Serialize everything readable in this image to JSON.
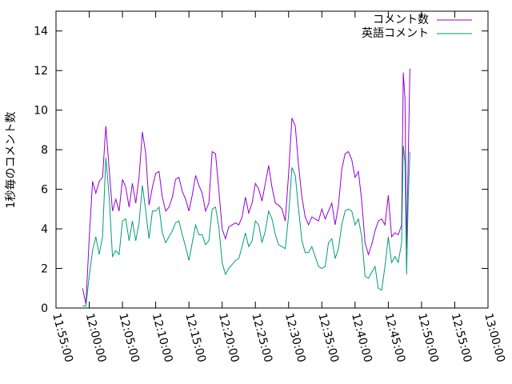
{
  "chart_data": {
    "type": "line",
    "title": "",
    "xlabel": "",
    "ylabel": "1秒毎のコメント数",
    "ylim": [
      0,
      15
    ],
    "xlim": [
      "11:55:00",
      "13:00:00"
    ],
    "yticks": [
      0,
      2,
      4,
      6,
      8,
      10,
      12,
      14
    ],
    "xticks": [
      "11:55:00",
      "12:00:00",
      "12:05:00",
      "12:10:00",
      "12:15:00",
      "12:20:00",
      "12:25:00",
      "12:30:00",
      "12:35:00",
      "12:40:00",
      "12:45:00",
      "12:50:00",
      "12:55:00",
      "13:00:00"
    ],
    "grid": false,
    "legend_position": "top-right",
    "series": [
      {
        "name": "コメント数",
        "color": "#9400d3",
        "points": [
          [
            "11:59:00",
            1.0
          ],
          [
            "11:59:30",
            0.2
          ],
          [
            "12:00:00",
            3.5
          ],
          [
            "12:00:30",
            6.4
          ],
          [
            "12:01:00",
            5.8
          ],
          [
            "12:01:30",
            6.4
          ],
          [
            "12:02:00",
            6.6
          ],
          [
            "12:02:30",
            9.2
          ],
          [
            "12:03:00",
            7.0
          ],
          [
            "12:03:30",
            4.9
          ],
          [
            "12:04:00",
            5.5
          ],
          [
            "12:04:30",
            4.9
          ],
          [
            "12:05:00",
            6.5
          ],
          [
            "12:05:30",
            6.1
          ],
          [
            "12:06:00",
            5.1
          ],
          [
            "12:06:30",
            6.3
          ],
          [
            "12:07:00",
            5.3
          ],
          [
            "12:07:30",
            6.6
          ],
          [
            "12:08:00",
            8.9
          ],
          [
            "12:08:30",
            7.8
          ],
          [
            "12:09:00",
            5.2
          ],
          [
            "12:09:30",
            6.1
          ],
          [
            "12:10:00",
            6.8
          ],
          [
            "12:10:30",
            6.9
          ],
          [
            "12:11:00",
            5.6
          ],
          [
            "12:11:30",
            4.9
          ],
          [
            "12:12:00",
            5.1
          ],
          [
            "12:12:30",
            5.6
          ],
          [
            "12:13:00",
            6.5
          ],
          [
            "12:13:30",
            6.6
          ],
          [
            "12:14:00",
            5.9
          ],
          [
            "12:14:30",
            5.5
          ],
          [
            "12:15:00",
            4.9
          ],
          [
            "12:15:30",
            5.7
          ],
          [
            "12:16:00",
            6.7
          ],
          [
            "12:16:30",
            6.2
          ],
          [
            "12:17:00",
            5.8
          ],
          [
            "12:17:30",
            4.9
          ],
          [
            "12:18:00",
            5.3
          ],
          [
            "12:18:30",
            7.9
          ],
          [
            "12:19:00",
            7.8
          ],
          [
            "12:19:30",
            6.0
          ],
          [
            "12:20:00",
            4.0
          ],
          [
            "12:20:30",
            3.5
          ],
          [
            "12:21:00",
            4.1
          ],
          [
            "12:21:30",
            4.2
          ],
          [
            "12:22:00",
            4.3
          ],
          [
            "12:22:30",
            4.2
          ],
          [
            "12:23:00",
            4.6
          ],
          [
            "12:23:30",
            5.6
          ],
          [
            "12:24:00",
            4.8
          ],
          [
            "12:24:30",
            5.3
          ],
          [
            "12:25:00",
            6.3
          ],
          [
            "12:25:30",
            6.0
          ],
          [
            "12:26:00",
            5.4
          ],
          [
            "12:26:30",
            6.3
          ],
          [
            "12:27:00",
            7.2
          ],
          [
            "12:27:30",
            6.1
          ],
          [
            "12:28:00",
            5.3
          ],
          [
            "12:28:30",
            5.2
          ],
          [
            "12:29:00",
            5.0
          ],
          [
            "12:29:30",
            4.4
          ],
          [
            "12:30:00",
            6.8
          ],
          [
            "12:30:30",
            9.6
          ],
          [
            "12:31:00",
            9.2
          ],
          [
            "12:31:30",
            7.2
          ],
          [
            "12:32:00",
            5.6
          ],
          [
            "12:32:30",
            4.6
          ],
          [
            "12:33:00",
            4.2
          ],
          [
            "12:33:30",
            4.6
          ],
          [
            "12:34:00",
            4.5
          ],
          [
            "12:34:30",
            4.4
          ],
          [
            "12:35:00",
            5.0
          ],
          [
            "12:35:30",
            4.5
          ],
          [
            "12:36:00",
            4.9
          ],
          [
            "12:36:30",
            5.3
          ],
          [
            "12:37:00",
            4.2
          ],
          [
            "12:37:30",
            5.2
          ],
          [
            "12:38:00",
            7.0
          ],
          [
            "12:38:30",
            7.8
          ],
          [
            "12:39:00",
            7.9
          ],
          [
            "12:39:30",
            7.5
          ],
          [
            "12:40:00",
            6.6
          ],
          [
            "12:40:30",
            6.9
          ],
          [
            "12:41:00",
            5.4
          ],
          [
            "12:41:30",
            3.3
          ],
          [
            "12:42:00",
            2.7
          ],
          [
            "12:42:30",
            3.2
          ],
          [
            "12:43:00",
            3.9
          ],
          [
            "12:43:30",
            4.4
          ],
          [
            "12:44:00",
            4.5
          ],
          [
            "12:44:30",
            4.2
          ],
          [
            "12:45:00",
            5.7
          ],
          [
            "12:45:30",
            3.6
          ],
          [
            "12:46:00",
            3.8
          ],
          [
            "12:46:30",
            3.7
          ],
          [
            "12:47:00",
            4.2
          ],
          [
            "12:47:15",
            11.9
          ],
          [
            "12:47:30",
            10.6
          ],
          [
            "12:47:45",
            3.0
          ],
          [
            "12:48:00",
            7.5
          ],
          [
            "12:48:15",
            12.1
          ]
        ]
      },
      {
        "name": "英語コメント",
        "color": "#009e73",
        "points": [
          [
            "11:59:00",
            0.1
          ],
          [
            "11:59:30",
            0.1
          ],
          [
            "12:00:00",
            1.6
          ],
          [
            "12:00:30",
            2.9
          ],
          [
            "12:01:00",
            3.6
          ],
          [
            "12:01:30",
            2.7
          ],
          [
            "12:02:00",
            3.6
          ],
          [
            "12:02:30",
            7.6
          ],
          [
            "12:03:00",
            5.6
          ],
          [
            "12:03:30",
            2.6
          ],
          [
            "12:04:00",
            2.9
          ],
          [
            "12:04:30",
            2.7
          ],
          [
            "12:05:00",
            4.4
          ],
          [
            "12:05:30",
            4.5
          ],
          [
            "12:06:00",
            3.4
          ],
          [
            "12:06:30",
            4.4
          ],
          [
            "12:07:00",
            3.4
          ],
          [
            "12:07:30",
            4.3
          ],
          [
            "12:08:00",
            6.2
          ],
          [
            "12:08:30",
            4.9
          ],
          [
            "12:09:00",
            3.5
          ],
          [
            "12:09:30",
            4.9
          ],
          [
            "12:10:00",
            4.9
          ],
          [
            "12:10:30",
            5.1
          ],
          [
            "12:11:00",
            3.8
          ],
          [
            "12:11:30",
            3.3
          ],
          [
            "12:12:00",
            3.6
          ],
          [
            "12:12:30",
            3.9
          ],
          [
            "12:13:00",
            4.3
          ],
          [
            "12:13:30",
            4.4
          ],
          [
            "12:14:00",
            3.7
          ],
          [
            "12:14:30",
            3.1
          ],
          [
            "12:15:00",
            2.4
          ],
          [
            "12:15:30",
            3.3
          ],
          [
            "12:16:00",
            4.2
          ],
          [
            "12:16:30",
            3.7
          ],
          [
            "12:17:00",
            3.7
          ],
          [
            "12:17:30",
            3.2
          ],
          [
            "12:18:00",
            3.4
          ],
          [
            "12:18:30",
            5.0
          ],
          [
            "12:19:00",
            5.1
          ],
          [
            "12:19:30",
            4.1
          ],
          [
            "12:20:00",
            2.3
          ],
          [
            "12:20:30",
            1.7
          ],
          [
            "12:21:00",
            2.0
          ],
          [
            "12:21:30",
            2.2
          ],
          [
            "12:22:00",
            2.4
          ],
          [
            "12:22:30",
            2.5
          ],
          [
            "12:23:00",
            3.1
          ],
          [
            "12:23:30",
            3.8
          ],
          [
            "12:24:00",
            3.1
          ],
          [
            "12:24:30",
            3.4
          ],
          [
            "12:25:00",
            4.4
          ],
          [
            "12:25:30",
            4.2
          ],
          [
            "12:26:00",
            3.3
          ],
          [
            "12:26:30",
            3.9
          ],
          [
            "12:27:00",
            4.9
          ],
          [
            "12:27:30",
            4.5
          ],
          [
            "12:28:00",
            3.7
          ],
          [
            "12:28:30",
            3.2
          ],
          [
            "12:29:00",
            3.1
          ],
          [
            "12:29:30",
            3.0
          ],
          [
            "12:30:00",
            4.7
          ],
          [
            "12:30:30",
            7.1
          ],
          [
            "12:31:00",
            6.7
          ],
          [
            "12:31:30",
            5.0
          ],
          [
            "12:32:00",
            3.4
          ],
          [
            "12:32:30",
            2.8
          ],
          [
            "12:33:00",
            2.8
          ],
          [
            "12:33:30",
            3.1
          ],
          [
            "12:34:00",
            2.6
          ],
          [
            "12:34:30",
            2.1
          ],
          [
            "12:35:00",
            2.0
          ],
          [
            "12:35:30",
            2.1
          ],
          [
            "12:36:00",
            3.3
          ],
          [
            "12:36:30",
            3.5
          ],
          [
            "12:37:00",
            2.5
          ],
          [
            "12:37:30",
            3.0
          ],
          [
            "12:38:00",
            4.2
          ],
          [
            "12:38:30",
            4.9
          ],
          [
            "12:39:00",
            5.0
          ],
          [
            "12:39:30",
            4.9
          ],
          [
            "12:40:00",
            4.2
          ],
          [
            "12:40:30",
            4.5
          ],
          [
            "12:41:00",
            3.6
          ],
          [
            "12:41:30",
            1.6
          ],
          [
            "12:42:00",
            1.5
          ],
          [
            "12:42:30",
            1.8
          ],
          [
            "12:43:00",
            2.1
          ],
          [
            "12:43:30",
            1.0
          ],
          [
            "12:44:00",
            0.9
          ],
          [
            "12:44:30",
            2.1
          ],
          [
            "12:45:00",
            3.6
          ],
          [
            "12:45:30",
            2.3
          ],
          [
            "12:46:00",
            2.6
          ],
          [
            "12:46:30",
            2.3
          ],
          [
            "12:47:00",
            3.3
          ],
          [
            "12:47:15",
            8.2
          ],
          [
            "12:47:30",
            7.4
          ],
          [
            "12:47:45",
            1.7
          ],
          [
            "12:48:00",
            5.6
          ],
          [
            "12:48:15",
            7.9
          ]
        ]
      }
    ]
  }
}
